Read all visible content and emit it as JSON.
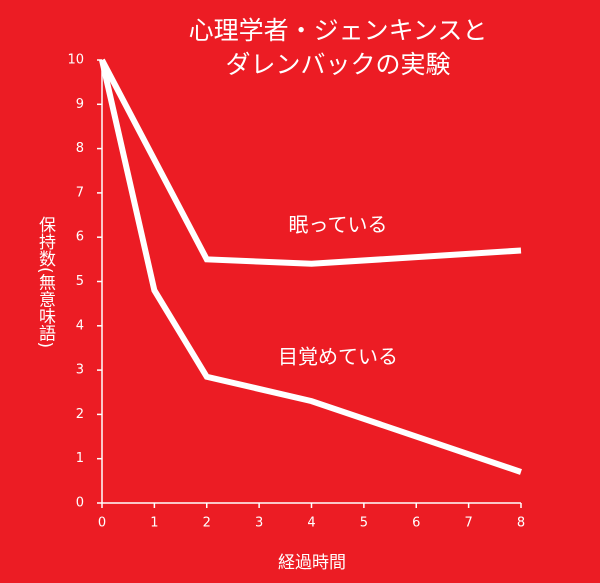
{
  "chart_data": {
    "type": "line",
    "title": [
      "心理学者・ジェンキンスと",
      "ダレンバックの実験"
    ],
    "x_label": "経過時間",
    "y_label": "保持数(無意味語)",
    "series": [
      {
        "name": "眠っている",
        "color": "#ffffff",
        "x": [
          0,
          2,
          4,
          8
        ],
        "values": [
          10,
          5.5,
          5.4,
          5.7
        ]
      },
      {
        "name": "目覚めている",
        "color": "#ffffff",
        "x": [
          0,
          1,
          2,
          4,
          8
        ],
        "values": [
          10,
          4.8,
          2.85,
          2.3,
          0.7
        ]
      }
    ],
    "xlim": [
      0,
      8
    ],
    "xticks": [
      0,
      1,
      2,
      3,
      4,
      5,
      6,
      7,
      8
    ],
    "ylim": [
      0,
      10
    ],
    "yticks": [
      0,
      1,
      2,
      3,
      4,
      5,
      6,
      7,
      8,
      9,
      10
    ],
    "background": "#ec1c24"
  }
}
